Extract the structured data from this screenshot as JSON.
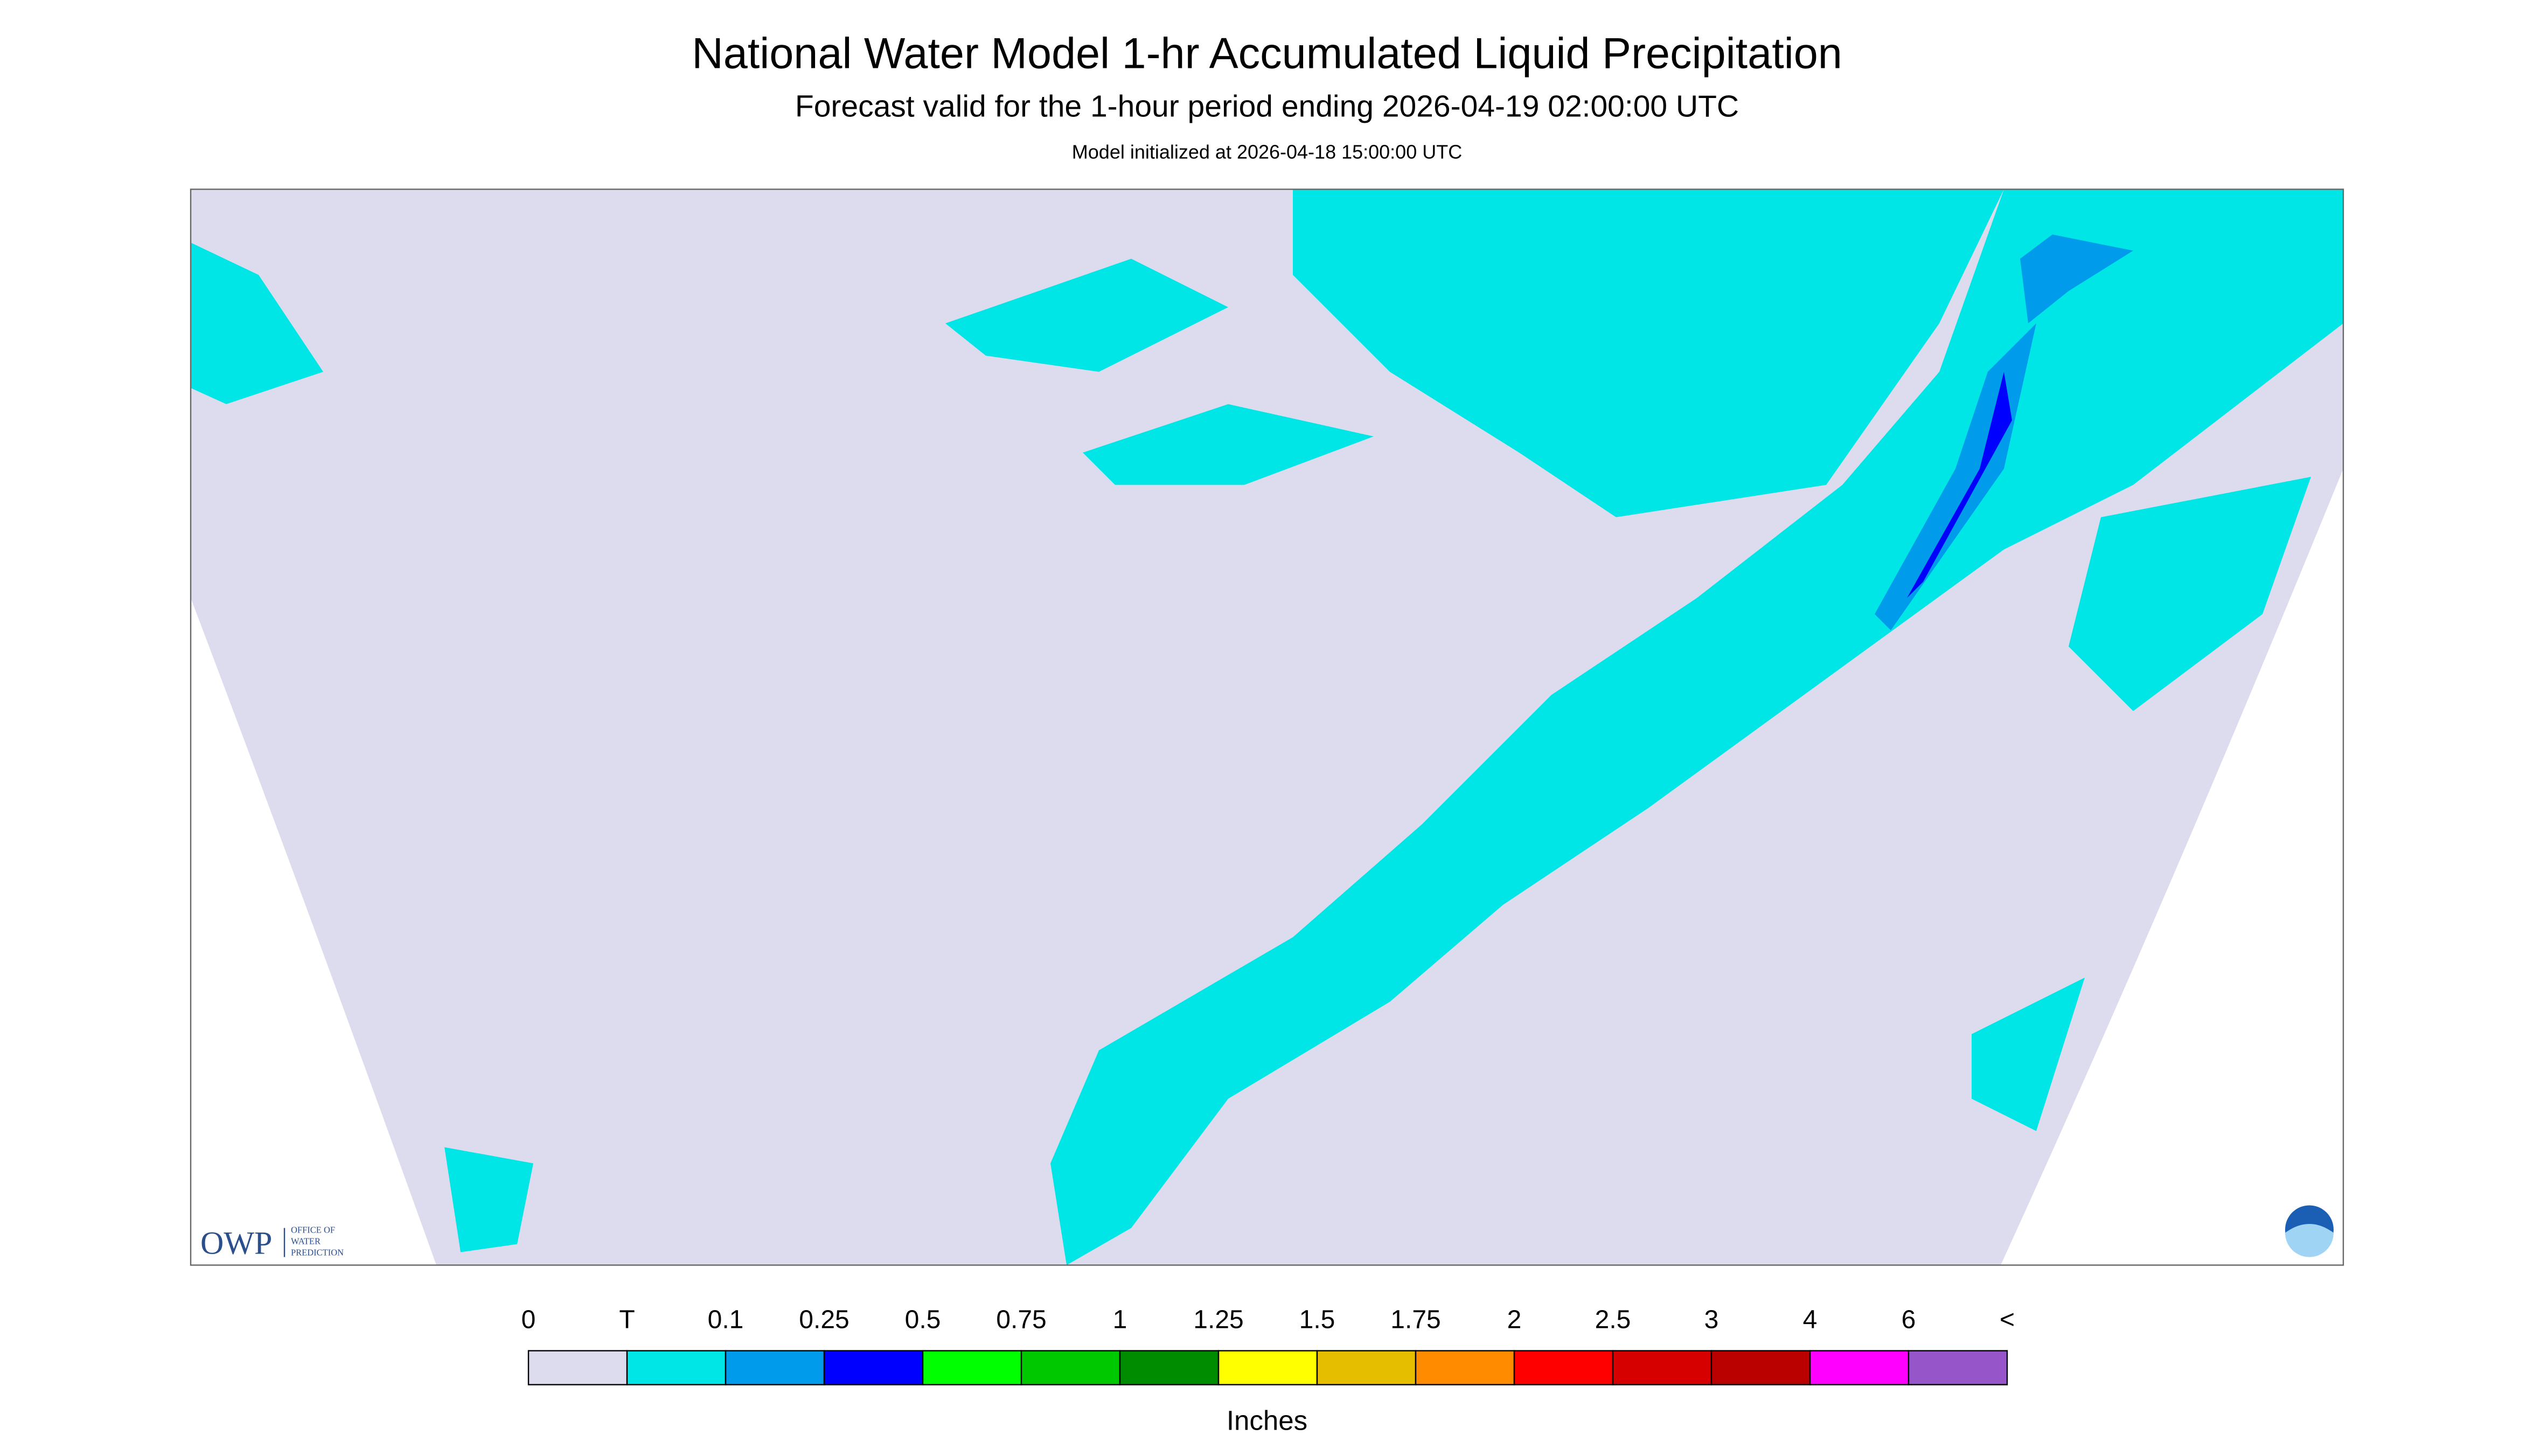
{
  "header": {
    "title": "National Water Model 1-hr Accumulated Liquid Precipitation",
    "subtitle": "Forecast valid for the 1-hour period ending 2026-04-19 02:00:00 UTC",
    "init": "Model initialized at 2026-04-18 15:00:00 UTC"
  },
  "logo": {
    "owp": "OWP",
    "office": [
      "OFFICE OF",
      "WATER",
      "PREDICTION"
    ]
  },
  "legend": {
    "labels": [
      "0",
      "T",
      "0.1",
      "0.25",
      "0.5",
      "0.75",
      "1",
      "1.25",
      "1.5",
      "1.75",
      "2",
      "2.5",
      "3",
      "4",
      "6",
      "<"
    ],
    "colors": [
      "#dcdcee",
      "#00e6e6",
      "#009ceb",
      "#0000ff",
      "#00ff00",
      "#00c800",
      "#008c00",
      "#ffff00",
      "#e6be00",
      "#ff8c00",
      "#ff0000",
      "#d70000",
      "#bb0000",
      "#ff00ff",
      "#9655c8"
    ],
    "units": "Inches"
  }
}
